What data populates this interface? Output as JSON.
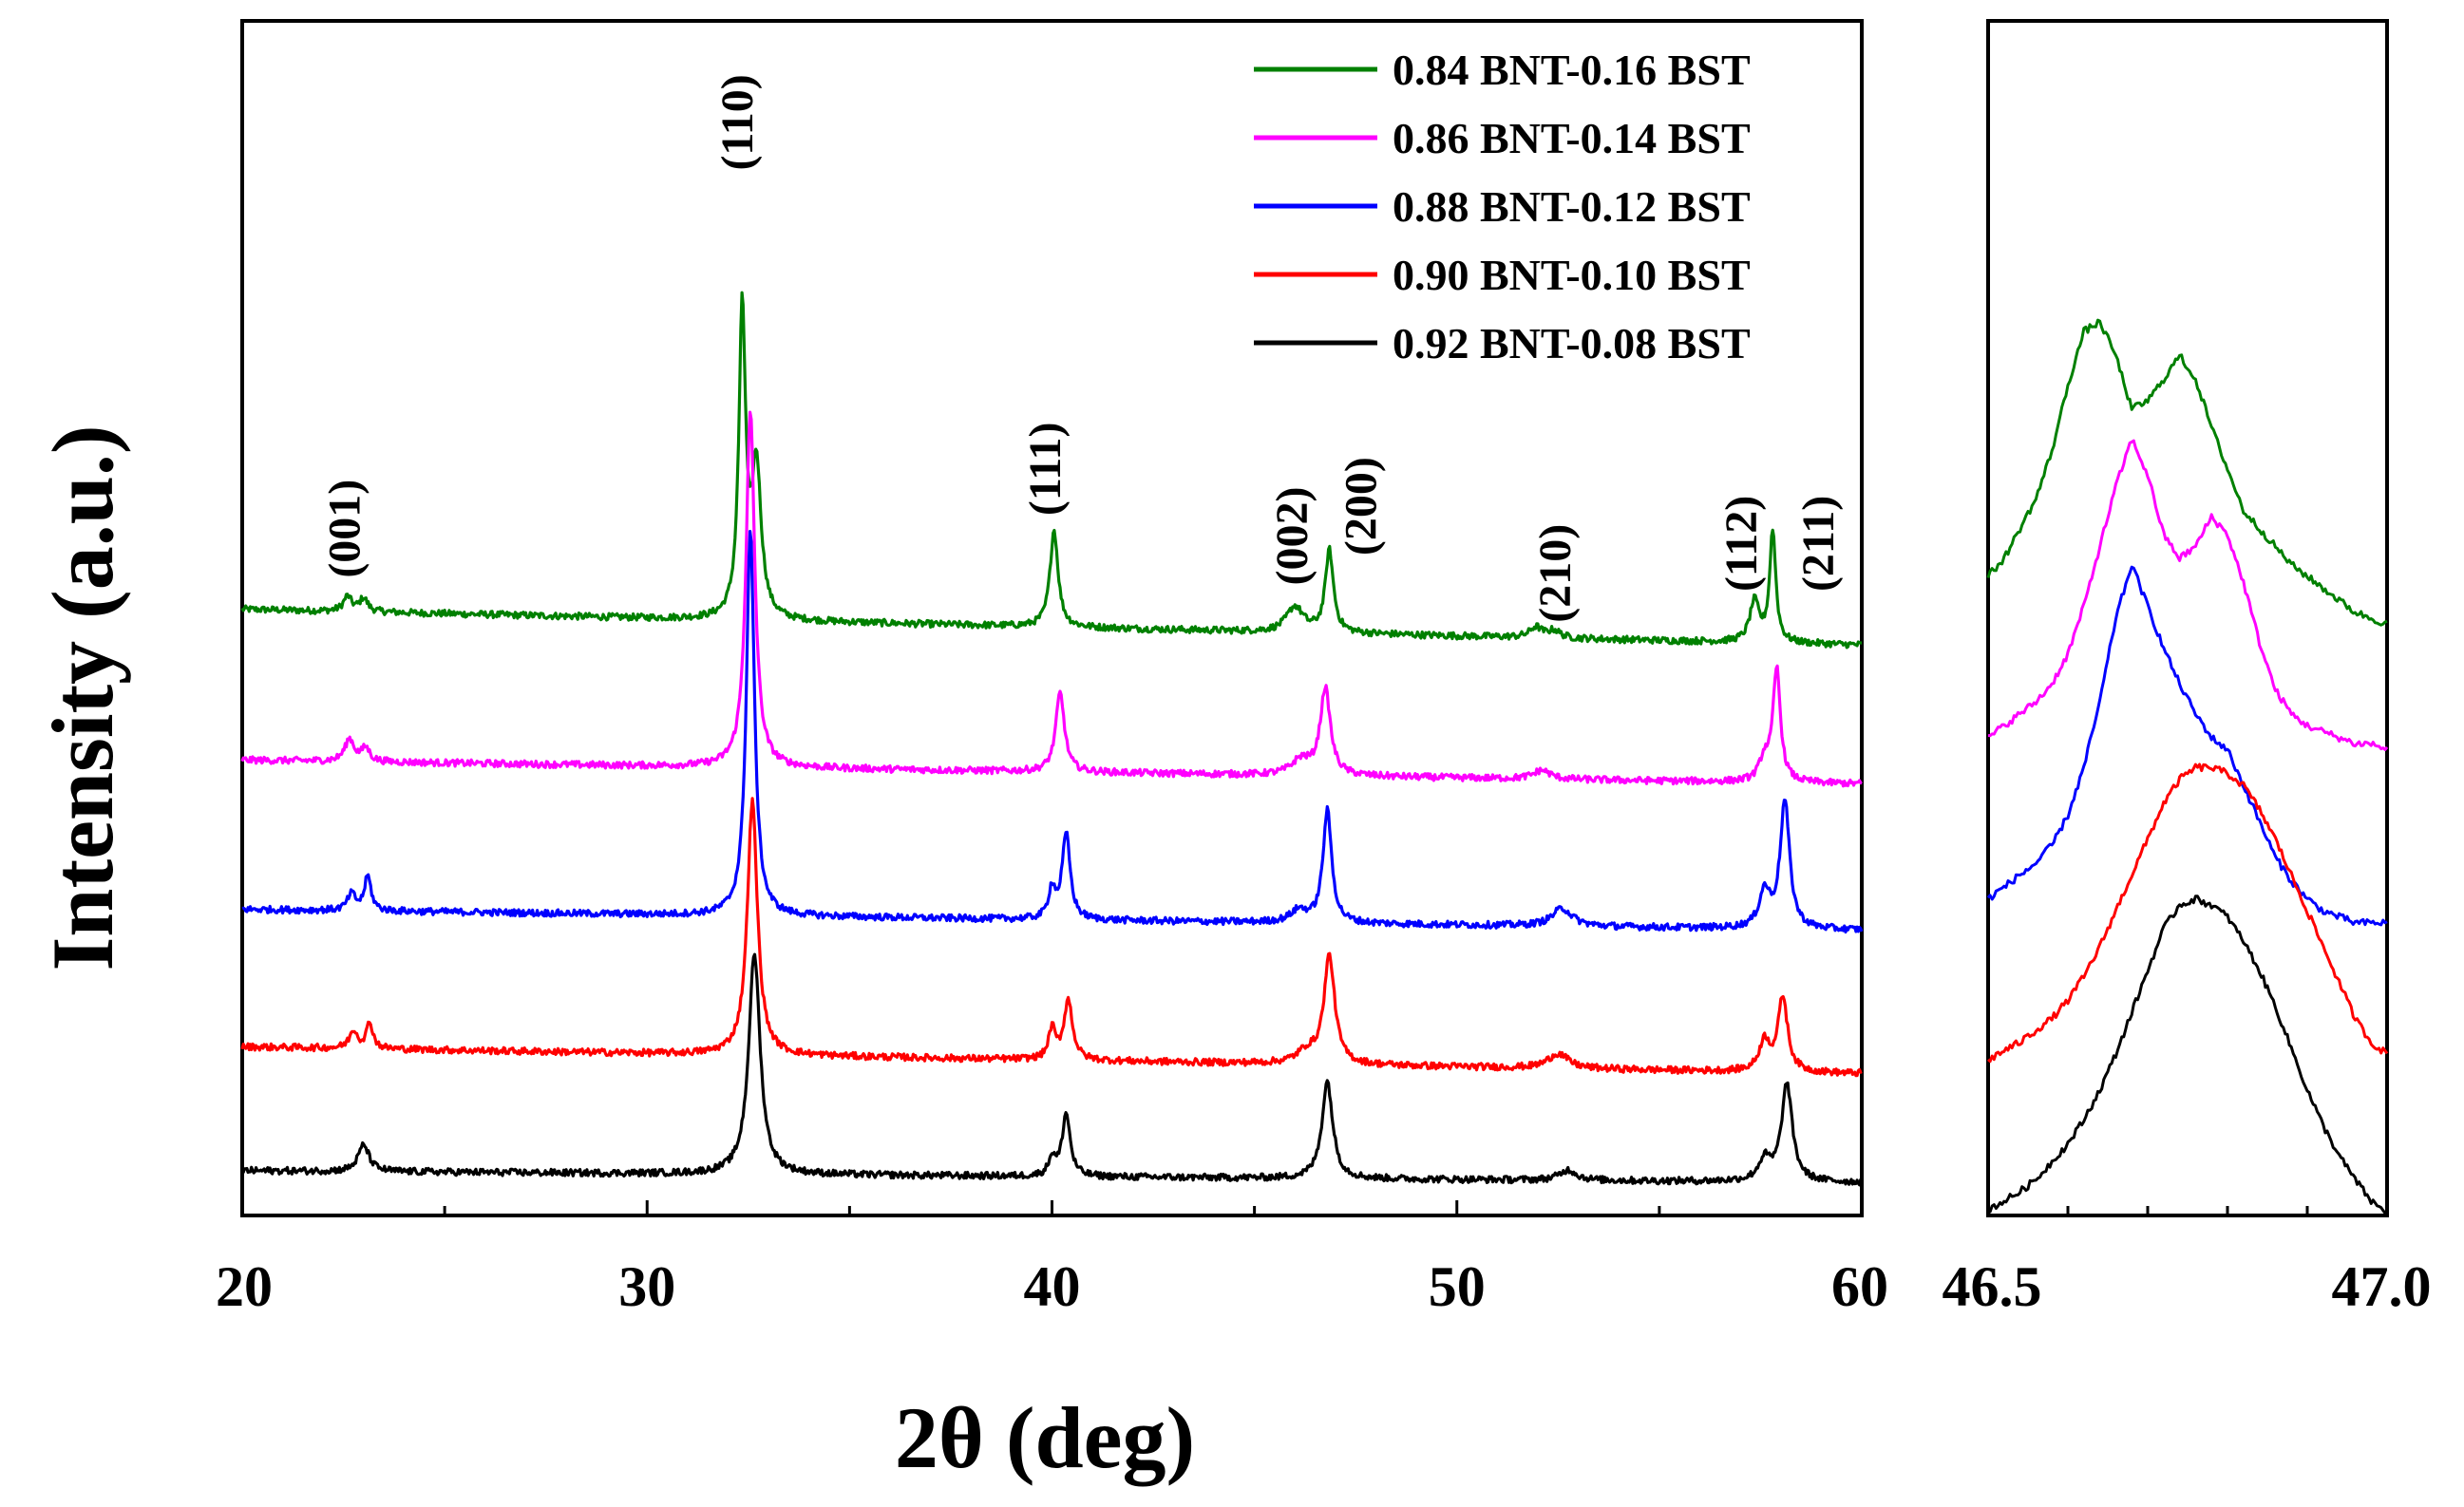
{
  "chart_data": [
    {
      "type": "line",
      "title": "",
      "xlabel": "2θ (deg)",
      "ylabel": "Intensity (a.u.)",
      "xlim": [
        20,
        60
      ],
      "ylim": [
        0,
        8
      ],
      "x_ticks": [
        20,
        30,
        40,
        50,
        60
      ],
      "x_tick_labels": [
        "20",
        "30",
        "40",
        "50",
        "60"
      ],
      "legend_position": "top-right",
      "grid": false,
      "baseline_step_note": "traces are vertically offset (stacked), y-units are arbitrary",
      "series": [
        {
          "name": "0.84 BNT-0.16 BST",
          "color": "#008000",
          "offset": 3.94,
          "background": [
            0.12,
            -0.12
          ],
          "peaks": [
            [
              22.6,
              0.1,
              0.12
            ],
            [
              23.0,
              0.09,
              0.12
            ],
            [
              32.35,
              2.05,
              0.1
            ],
            [
              32.7,
              1.0,
              0.14
            ],
            [
              40.05,
              0.65,
              0.12
            ],
            [
              46.0,
              0.17,
              0.25
            ],
            [
              46.85,
              0.55,
              0.12
            ],
            [
              51.95,
              0.07,
              0.18
            ],
            [
              52.4,
              0.05,
              0.18
            ],
            [
              57.35,
              0.27,
              0.14
            ],
            [
              57.8,
              0.75,
              0.09
            ]
          ]
        },
        {
          "name": "0.86 BNT-0.14 BST",
          "color": "#ff00ff",
          "offset": 2.97,
          "background": [
            0.08,
            -0.08
          ],
          "peaks": [
            [
              22.65,
              0.15,
              0.14
            ],
            [
              23.05,
              0.09,
              0.12
            ],
            [
              32.55,
              2.38,
              0.13
            ],
            [
              40.2,
              0.53,
              0.13
            ],
            [
              46.15,
              0.1,
              0.28
            ],
            [
              46.75,
              0.58,
              0.15
            ],
            [
              52.1,
              0.06,
              0.25
            ],
            [
              57.6,
              0.15,
              0.15
            ],
            [
              57.9,
              0.75,
              0.11
            ]
          ]
        },
        {
          "name": "0.88 BNT-0.12 BST",
          "color": "#0000ff",
          "offset": 1.99,
          "background": [
            0.06,
            -0.08
          ],
          "peaks": [
            [
              22.7,
              0.11,
              0.12
            ],
            [
              23.1,
              0.23,
              0.1
            ],
            [
              32.55,
              2.58,
              0.12
            ],
            [
              40.0,
              0.2,
              0.1
            ],
            [
              40.35,
              0.57,
              0.12
            ],
            [
              46.1,
              0.08,
              0.25
            ],
            [
              46.8,
              0.75,
              0.13
            ],
            [
              52.6,
              0.12,
              0.3
            ],
            [
              57.6,
              0.24,
              0.16
            ],
            [
              58.1,
              0.85,
              0.14
            ]
          ]
        },
        {
          "name": "0.90 BNT-0.10 BST",
          "color": "#ff0000",
          "offset": 1.07,
          "background": [
            0.06,
            -0.12
          ],
          "peaks": [
            [
              22.75,
              0.12,
              0.12
            ],
            [
              23.15,
              0.17,
              0.1
            ],
            [
              32.6,
              1.7,
              0.15
            ],
            [
              40.0,
              0.2,
              0.1
            ],
            [
              40.4,
              0.4,
              0.13
            ],
            [
              46.3,
              0.08,
              0.3
            ],
            [
              46.85,
              0.72,
              0.16
            ],
            [
              52.5,
              0.1,
              0.3
            ],
            [
              57.6,
              0.2,
              0.16
            ],
            [
              58.05,
              0.5,
              0.14
            ]
          ]
        },
        {
          "name": "0.92 BNT-0.08 BST",
          "color": "#000000",
          "offset": 0.28,
          "background": [
            0.02,
            -0.06
          ],
          "peaks": [
            [
              23.0,
              0.18,
              0.16
            ],
            [
              32.65,
              1.48,
              0.17
            ],
            [
              40.0,
              0.12,
              0.1
            ],
            [
              40.35,
              0.42,
              0.12
            ],
            [
              46.8,
              0.65,
              0.16
            ],
            [
              52.75,
              0.07,
              0.25
            ],
            [
              57.6,
              0.14,
              0.18
            ],
            [
              58.15,
              0.65,
              0.16
            ]
          ]
        }
      ],
      "annotations": [
        {
          "text": "(001)",
          "x": 22.9,
          "y": 4.6
        },
        {
          "text": "(110)",
          "x": 32.6,
          "y": 7.32
        },
        {
          "text": "(111)",
          "x": 40.2,
          "y": 5.0
        },
        {
          "text": "(002)",
          "x": 46.3,
          "y": 4.55
        },
        {
          "text": "(200)",
          "x": 48.0,
          "y": 4.75
        },
        {
          "text": "(210)",
          "x": 52.8,
          "y": 4.3
        },
        {
          "text": "(112)",
          "x": 57.4,
          "y": 4.5
        },
        {
          "text": "(211)",
          "x": 59.3,
          "y": 4.5
        }
      ]
    },
    {
      "type": "line",
      "title": "",
      "xlabel": "",
      "ylabel": "",
      "xlim": [
        46.5,
        47.0
      ],
      "ylim": [
        0,
        10
      ],
      "x_ticks": [
        46.5,
        47.0
      ],
      "x_tick_labels": [
        "46.5",
        "47.0"
      ],
      "grid": false,
      "description": "zoom of the 46.5–47.0 region, same series order and colors",
      "series": [
        {
          "name": "0.84 BNT-0.16 BST",
          "color": "#008000",
          "x": [
            46.5,
            46.52,
            46.54,
            46.56,
            46.58,
            46.6,
            46.62,
            46.64,
            46.66,
            46.68,
            46.7,
            46.72,
            46.74,
            46.76,
            46.78,
            46.8,
            46.82,
            46.84,
            46.86,
            46.88,
            46.9,
            46.92,
            46.94,
            46.96,
            46.98,
            47.0
          ],
          "y": [
            5.35,
            5.5,
            5.75,
            6.0,
            6.4,
            6.95,
            7.4,
            7.48,
            7.2,
            6.75,
            6.82,
            7.0,
            7.2,
            7.0,
            6.6,
            6.25,
            5.9,
            5.75,
            5.6,
            5.45,
            5.35,
            5.25,
            5.15,
            5.05,
            5.0,
            4.95
          ]
        },
        {
          "name": "0.86 BNT-0.14 BST",
          "color": "#ff00ff",
          "x": [
            46.5,
            46.52,
            46.54,
            46.56,
            46.58,
            46.6,
            46.62,
            46.64,
            46.66,
            46.68,
            46.7,
            46.72,
            46.74,
            46.76,
            46.78,
            46.8,
            46.82,
            46.84,
            46.86,
            46.88,
            46.9,
            46.92,
            46.94,
            46.96,
            46.98,
            47.0
          ],
          "y": [
            4.0,
            4.1,
            4.2,
            4.3,
            4.45,
            4.7,
            5.1,
            5.6,
            6.1,
            6.5,
            6.2,
            5.7,
            5.5,
            5.6,
            5.85,
            5.7,
            5.3,
            4.8,
            4.4,
            4.2,
            4.1,
            4.05,
            4.0,
            3.95,
            3.95,
            3.9
          ]
        },
        {
          "name": "0.88 BNT-0.12 BST",
          "color": "#0000ff",
          "x": [
            46.5,
            46.52,
            46.54,
            46.56,
            46.58,
            46.6,
            46.62,
            46.64,
            46.66,
            46.68,
            46.7,
            46.72,
            46.74,
            46.76,
            46.78,
            46.8,
            46.82,
            46.84,
            46.86,
            46.88,
            46.9,
            46.92,
            46.94,
            46.96,
            46.98,
            47.0
          ],
          "y": [
            2.65,
            2.75,
            2.85,
            2.95,
            3.1,
            3.35,
            3.75,
            4.3,
            5.0,
            5.45,
            5.1,
            4.75,
            4.45,
            4.2,
            4.0,
            3.9,
            3.6,
            3.3,
            3.0,
            2.8,
            2.65,
            2.55,
            2.5,
            2.45,
            2.45,
            2.45
          ]
        },
        {
          "name": "0.90 BNT-0.10 BST",
          "color": "#ff0000",
          "x": [
            46.5,
            46.52,
            46.54,
            46.56,
            46.58,
            46.6,
            46.62,
            46.64,
            46.66,
            46.68,
            46.7,
            46.72,
            46.74,
            46.76,
            46.78,
            46.8,
            46.82,
            46.84,
            46.86,
            46.88,
            46.9,
            46.92,
            46.94,
            46.96,
            46.98,
            47.0
          ],
          "y": [
            1.3,
            1.38,
            1.45,
            1.55,
            1.65,
            1.8,
            2.0,
            2.25,
            2.55,
            2.85,
            3.15,
            3.45,
            3.65,
            3.75,
            3.75,
            3.7,
            3.6,
            3.4,
            3.15,
            2.85,
            2.55,
            2.25,
            1.95,
            1.65,
            1.45,
            1.35
          ]
        },
        {
          "name": "0.92 BNT-0.08 BST",
          "color": "#000000",
          "x": [
            46.5,
            46.52,
            46.54,
            46.56,
            46.58,
            46.6,
            46.62,
            46.64,
            46.66,
            46.68,
            46.7,
            46.72,
            46.74,
            46.76,
            46.78,
            46.8,
            46.82,
            46.84,
            46.86,
            46.88,
            46.9,
            46.92,
            46.94,
            46.96,
            46.98,
            47.0
          ],
          "y": [
            0.05,
            0.12,
            0.2,
            0.3,
            0.45,
            0.6,
            0.8,
            1.05,
            1.35,
            1.7,
            2.05,
            2.4,
            2.6,
            2.65,
            2.6,
            2.5,
            2.3,
            2.05,
            1.75,
            1.4,
            1.05,
            0.75,
            0.5,
            0.3,
            0.12,
            0.02
          ]
        }
      ]
    }
  ]
}
